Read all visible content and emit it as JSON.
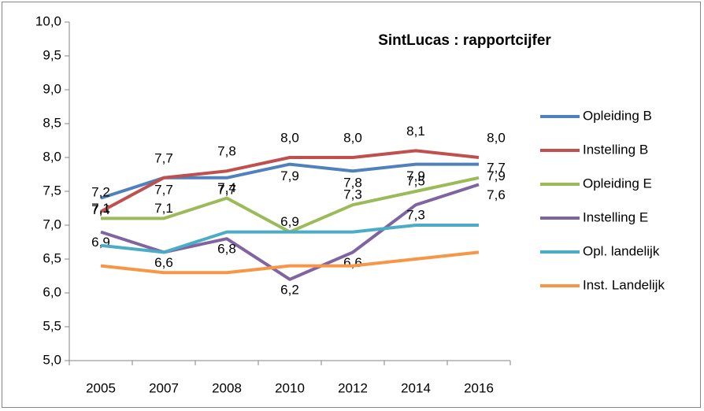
{
  "chart_data": {
    "type": "line",
    "title": "SintLucas : rapportcijfer",
    "categories": [
      "2005",
      "2007",
      "2008",
      "2010",
      "2012",
      "2014",
      "2016"
    ],
    "ylim": [
      5,
      10
    ],
    "yticks": [
      {
        "value": 5,
        "label": "5,0"
      },
      {
        "value": 5.5,
        "label": "5,5"
      },
      {
        "value": 6,
        "label": "6,0"
      },
      {
        "value": 6.5,
        "label": "6,5"
      },
      {
        "value": 7,
        "label": "7,0"
      },
      {
        "value": 7.5,
        "label": "7,5"
      },
      {
        "value": 8,
        "label": "8,0"
      },
      {
        "value": 8.5,
        "label": "8,5"
      },
      {
        "value": 9,
        "label": "9,0"
      },
      {
        "value": 9.5,
        "label": "9,5"
      },
      {
        "value": 10,
        "label": "10,0"
      }
    ],
    "grid": false,
    "legend": "right",
    "series": [
      {
        "name": "Opleiding B",
        "color": "#4f81bd",
        "values": [
          7.4,
          7.7,
          7.7,
          7.9,
          7.8,
          7.9,
          7.9
        ],
        "value_labels": [
          "7,4",
          "7,7",
          "7,7",
          "7,9",
          "7,8",
          "7,9",
          "7,9"
        ]
      },
      {
        "name": "Instelling B",
        "color": "#c0504d",
        "values": [
          7.2,
          7.7,
          7.8,
          8.0,
          8.0,
          8.1,
          8.0
        ],
        "value_labels": [
          "7,2",
          "7,7",
          "7,8",
          "8,0",
          "8,0",
          "8,1",
          "8,0"
        ]
      },
      {
        "name": "Opleiding E",
        "color": "#9bbb59",
        "values": [
          7.1,
          7.1,
          7.4,
          6.9,
          7.3,
          7.5,
          7.7
        ],
        "value_labels": [
          "7,1",
          "7,1",
          "7,4",
          "6,9",
          "7,3",
          "7,5",
          "7,7"
        ]
      },
      {
        "name": "Instelling E",
        "color": "#8064a2",
        "values": [
          6.9,
          6.6,
          6.8,
          6.2,
          6.6,
          7.3,
          7.6
        ],
        "value_labels": [
          "6,9",
          "6,6",
          "6,8",
          "6,2",
          "6,6",
          "7,3",
          "7,6"
        ]
      },
      {
        "name": "Opl. landelijk",
        "color": "#4bacc6",
        "values": [
          6.7,
          6.6,
          6.9,
          6.9,
          6.9,
          7.0,
          7.0
        ]
      },
      {
        "name": "Inst. Landelijk",
        "color": "#f79646",
        "values": [
          6.4,
          6.3,
          6.3,
          6.4,
          6.4,
          6.5,
          6.6
        ]
      }
    ]
  }
}
